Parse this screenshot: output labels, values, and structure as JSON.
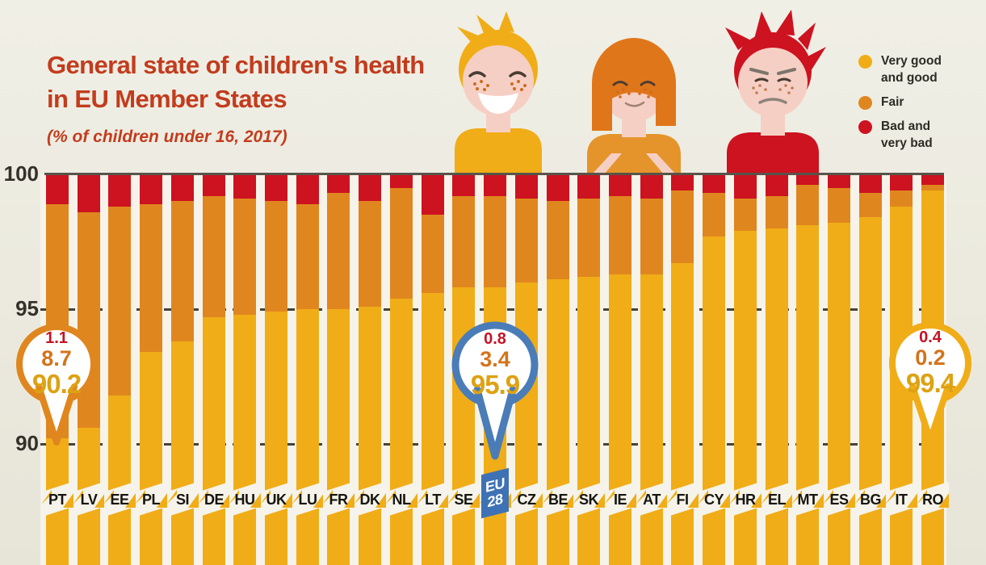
{
  "title": {
    "line1": "General state of children's health",
    "line2": "in EU Member States",
    "subtitle": "(% of children under 16, 2017)"
  },
  "legend": [
    {
      "label": "Very good\nand good",
      "color": "#f0ad17"
    },
    {
      "label": "Fair",
      "color": "#e0861f"
    },
    {
      "label": "Bad and\nvery bad",
      "color": "#cd1220"
    }
  ],
  "y_axis": {
    "ticks": [
      "100",
      "95",
      "90"
    ],
    "values": [
      100,
      95,
      90
    ]
  },
  "chart_data": {
    "type": "bar",
    "stacked": true,
    "title": "General state of children's health in EU Member States",
    "unit": "% of children under 16, 2017",
    "ylim": [
      87,
      100
    ],
    "y_gridlines": [
      100,
      95,
      90
    ],
    "grid": "dashed-horizontal",
    "legend_position": "top-right",
    "categories": [
      "PT",
      "LV",
      "EE",
      "PL",
      "SI",
      "DE",
      "HU",
      "UK",
      "LU",
      "FR",
      "DK",
      "NL",
      "LT",
      "SE",
      "EU28",
      "CZ",
      "BE",
      "SK",
      "IE",
      "AT",
      "FI",
      "CY",
      "HR",
      "EL",
      "MT",
      "ES",
      "BG",
      "IT",
      "RO"
    ],
    "series": [
      {
        "name": "Very good and good",
        "color": "#f0ad17",
        "values": [
          90.2,
          90.6,
          91.8,
          93.4,
          93.8,
          94.7,
          94.8,
          94.9,
          95.0,
          95.0,
          95.1,
          95.4,
          95.6,
          95.8,
          95.9,
          96.0,
          96.1,
          96.2,
          96.3,
          96.3,
          96.7,
          97.7,
          97.9,
          98.0,
          98.1,
          98.2,
          98.4,
          98.8,
          99.4
        ]
      },
      {
        "name": "Fair",
        "color": "#e0861f",
        "values": [
          8.7,
          8.0,
          7.0,
          5.5,
          5.2,
          4.5,
          4.3,
          4.1,
          3.9,
          4.3,
          3.9,
          4.1,
          2.9,
          3.4,
          3.4,
          3.1,
          2.9,
          2.9,
          2.9,
          2.8,
          2.7,
          1.6,
          1.2,
          1.2,
          1.5,
          1.3,
          0.9,
          0.6,
          0.2
        ]
      },
      {
        "name": "Bad and very bad",
        "color": "#cd1220",
        "values": [
          1.1,
          1.4,
          1.2,
          1.1,
          1.0,
          0.8,
          0.9,
          1.0,
          1.1,
          0.7,
          1.0,
          0.5,
          1.5,
          0.8,
          0.8,
          0.9,
          1.0,
          0.9,
          0.8,
          0.9,
          0.6,
          0.7,
          0.9,
          0.8,
          0.4,
          0.5,
          0.7,
          0.6,
          0.4
        ]
      }
    ],
    "callouts": [
      {
        "country": "PT",
        "bad": "1.1",
        "fair": "8.7",
        "good": "90.2",
        "ring_color": "#e0861f"
      },
      {
        "country": "EU28",
        "bad": "0.8",
        "fair": "3.4",
        "good": "95.9",
        "ring_color": "#4a7cb8"
      },
      {
        "country": "RO",
        "bad": "0.4",
        "fair": "0.2",
        "good": "99.4",
        "ring_color": "#f0ad17"
      }
    ],
    "special_label": {
      "country": "EU28",
      "line1": "EU",
      "line2": "28",
      "badge_color": "#3f72b5"
    }
  }
}
